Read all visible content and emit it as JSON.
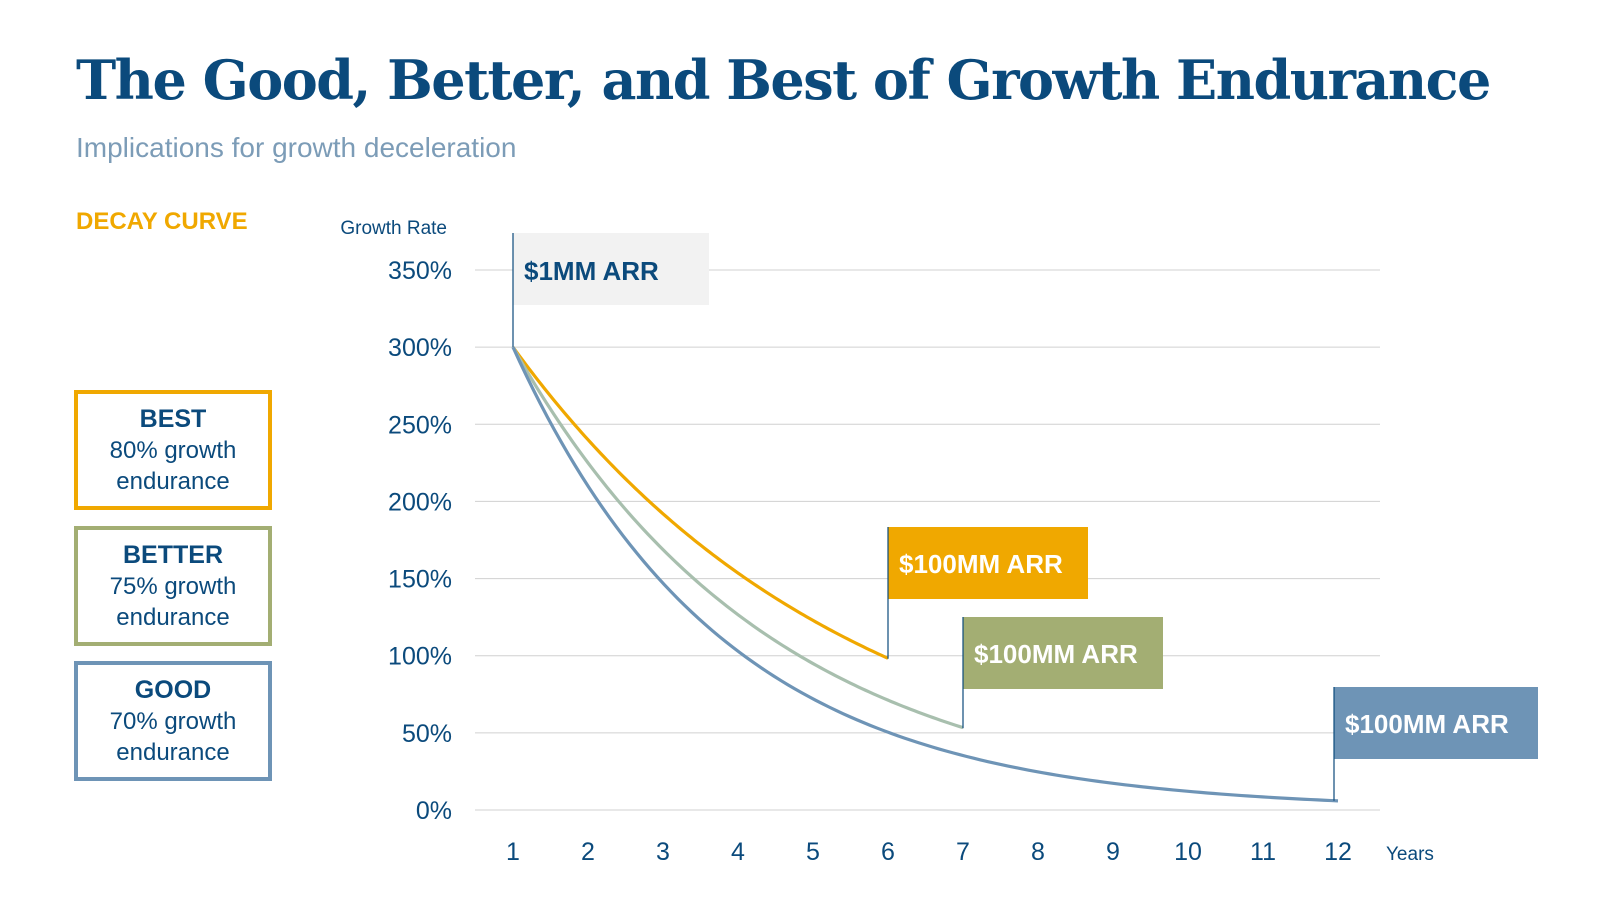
{
  "header": {
    "title": "The Good, Better, and Best of Growth Endurance",
    "subtitle": "Implications for growth deceleration"
  },
  "legend": {
    "heading": "DECAY CURVE",
    "items": [
      {
        "name": "BEST",
        "description": "80% growth endurance",
        "color": "#f0a800"
      },
      {
        "name": "BETTER",
        "description": "75% growth endurance",
        "color": "#a3ae73"
      },
      {
        "name": "GOOD",
        "description": "70% growth endurance",
        "color": "#6e94b6"
      }
    ]
  },
  "chart_data": {
    "type": "line",
    "title": "",
    "xlabel": "Years",
    "ylabel": "Growth Rate",
    "x_ticks": [
      1,
      2,
      3,
      4,
      5,
      6,
      7,
      8,
      9,
      10,
      11,
      12
    ],
    "y_ticks": [
      "0%",
      "50%",
      "100%",
      "150%",
      "200%",
      "250%",
      "300%",
      "350%"
    ],
    "ylim": [
      0,
      350
    ],
    "xlim": [
      1,
      12
    ],
    "grid": "horizontal",
    "series": [
      {
        "name": "BEST",
        "decay": 0.8,
        "x": [
          1,
          2,
          3,
          4,
          5,
          6
        ],
        "y": [
          300,
          240,
          192,
          154,
          123,
          98
        ],
        "color": "#f0a800",
        "end_label": "$100MM ARR"
      },
      {
        "name": "BETTER",
        "decay": 0.75,
        "x": [
          1,
          2,
          3,
          4,
          5,
          6,
          7
        ],
        "y": [
          300,
          225,
          169,
          127,
          95,
          71,
          53
        ],
        "color": "#a8bfae",
        "label_color": "#a3ae73",
        "end_label": "$100MM ARR"
      },
      {
        "name": "GOOD",
        "decay": 0.7,
        "x": [
          1,
          2,
          3,
          4,
          5,
          6,
          7,
          8,
          9,
          10,
          11,
          12
        ],
        "y": [
          300,
          210,
          147,
          103,
          72,
          50,
          35,
          25,
          17,
          12,
          8,
          6
        ],
        "color": "#6e94b6",
        "end_label": "$100MM ARR"
      }
    ],
    "annotations": [
      {
        "text": "$1MM ARR",
        "x": 1,
        "y": 300
      }
    ]
  }
}
